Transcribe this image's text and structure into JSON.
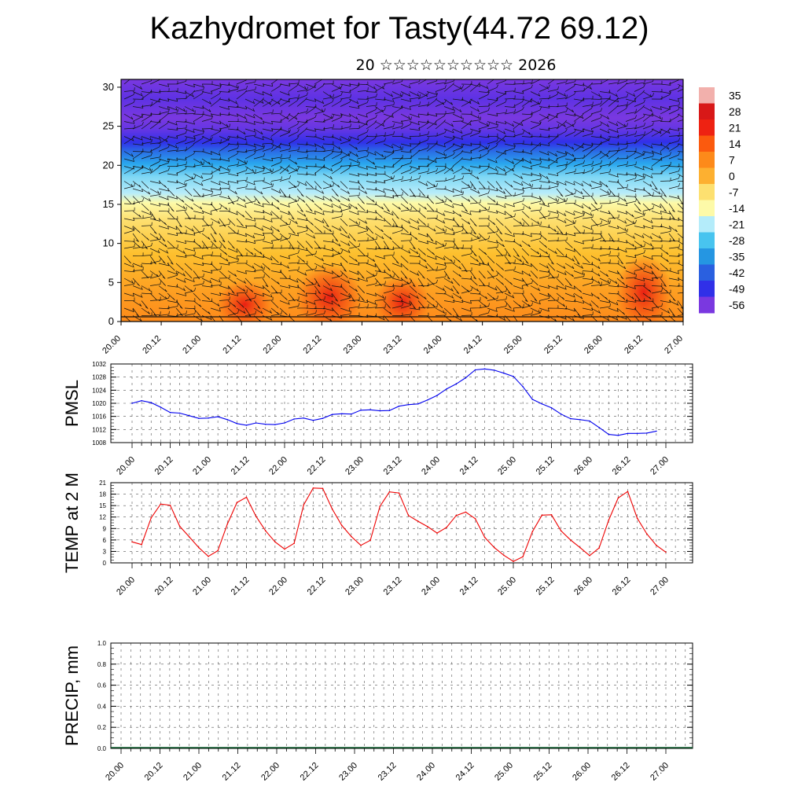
{
  "header": {
    "title": "Kazhydromet for Tasty(44.72 69.12)",
    "subtitle": "20 ☆☆☆☆☆☆☆☆☆☆ 2026"
  },
  "chart_data": [
    {
      "type": "heatmap",
      "name": "vertical cross-section (temperature with wind barbs)",
      "x_ticks": [
        "20.00",
        "20.12",
        "21.00",
        "21.12",
        "22.00",
        "22.12",
        "23.00",
        "23.12",
        "24.00",
        "24.12",
        "25.00",
        "25.12",
        "26.00",
        "26.12",
        "27.00"
      ],
      "ylim": [
        0,
        31
      ],
      "y_ticks": [
        0,
        5,
        10,
        15,
        20,
        25,
        30
      ],
      "colorbar": {
        "labels": [
          "35",
          "28",
          "21",
          "14",
          "7",
          "0",
          "-7",
          "-14",
          "-21",
          "-28",
          "-35",
          "-42",
          "-49",
          "-56"
        ],
        "colors": [
          "#f2b0ac",
          "#d81818",
          "#ee2212",
          "#fb5a0e",
          "#fd8a1a",
          "#fdb030",
          "#fde070",
          "#fdfaa8",
          "#b4ecfa",
          "#48c4ef",
          "#2596e2",
          "#2a60e0",
          "#3030e8",
          "#7a38e0"
        ]
      }
    },
    {
      "type": "line",
      "name": "pmsl",
      "ylabel": "PMSL",
      "ylim": [
        1008,
        1032
      ],
      "y_ticks": [
        "1008",
        "1012",
        "1016",
        "1020",
        "1024",
        "1028",
        "1032"
      ],
      "x_ticks": [
        "20.00",
        "20.12",
        "21.00",
        "21.12",
        "22.00",
        "22.12",
        "23.00",
        "23.12",
        "24.00",
        "24.12",
        "25.00",
        "25.12",
        "26.00",
        "26.12",
        "27.00"
      ],
      "color": "#0000ee",
      "values": [
        1020.0,
        1020.8,
        1020.2,
        1018.8,
        1017.2,
        1017.0,
        1016.2,
        1015.4,
        1015.5,
        1015.9,
        1015.0,
        1013.8,
        1013.3,
        1014.0,
        1013.6,
        1013.5,
        1014.0,
        1015.2,
        1015.5,
        1014.8,
        1015.4,
        1016.6,
        1016.8,
        1016.7,
        1017.9,
        1018.0,
        1017.7,
        1017.8,
        1019.1,
        1019.6,
        1019.8,
        1021.0,
        1022.4,
        1024.4,
        1025.9,
        1027.8,
        1030.2,
        1030.5,
        1030.1,
        1029.2,
        1028.2,
        1025.1,
        1021.2,
        1019.8,
        1018.6,
        1016.7,
        1015.3,
        1015.0,
        1014.6,
        1012.6,
        1010.5,
        1010.2,
        1010.8,
        1010.8,
        1010.9,
        1011.5
      ]
    },
    {
      "type": "line",
      "name": "temp-2m",
      "ylabel": "TEMP at 2 M",
      "ylim": [
        0,
        21
      ],
      "y_ticks": [
        "0",
        "3",
        "6",
        "9",
        "12",
        "15",
        "18",
        "21"
      ],
      "x_ticks": [
        "20.00",
        "20.12",
        "21.00",
        "21.12",
        "22.00",
        "22.12",
        "23.00",
        "23.12",
        "24.00",
        "24.12",
        "25.00",
        "25.12",
        "26.00",
        "26.12",
        "27.00"
      ],
      "color": "#ee0000",
      "values": [
        5.5,
        4.8,
        11.8,
        15.4,
        15.1,
        9.6,
        6.8,
        4.0,
        1.7,
        3.2,
        10.2,
        15.8,
        17.2,
        12.2,
        8.4,
        5.5,
        3.6,
        5.1,
        15.2,
        19.6,
        19.5,
        14.1,
        9.8,
        6.9,
        4.6,
        5.9,
        14.8,
        18.6,
        18.3,
        12.4,
        10.9,
        9.5,
        7.8,
        9.3,
        12.4,
        13.3,
        11.6,
        6.7,
        4.0,
        2.0,
        0.4,
        1.6,
        8.2,
        12.5,
        12.6,
        8.4,
        6.0,
        4.0,
        1.9,
        3.9,
        11.2,
        17.0,
        18.7,
        11.7,
        7.6,
        4.6,
        2.8
      ]
    },
    {
      "type": "line",
      "name": "precip",
      "ylabel": "PRECIP, mm",
      "ylim": [
        0,
        1
      ],
      "y_ticks": [
        "0.0",
        "0.2",
        "0.4",
        "0.6",
        "0.8",
        "1.0"
      ],
      "x_ticks": [
        "20.00",
        "20.12",
        "21.00",
        "21.12",
        "22.00",
        "22.12",
        "23.00",
        "23.12",
        "24.00",
        "24.12",
        "25.00",
        "25.12",
        "26.00",
        "26.12",
        "27.00"
      ],
      "color": "#000000",
      "values": []
    }
  ]
}
